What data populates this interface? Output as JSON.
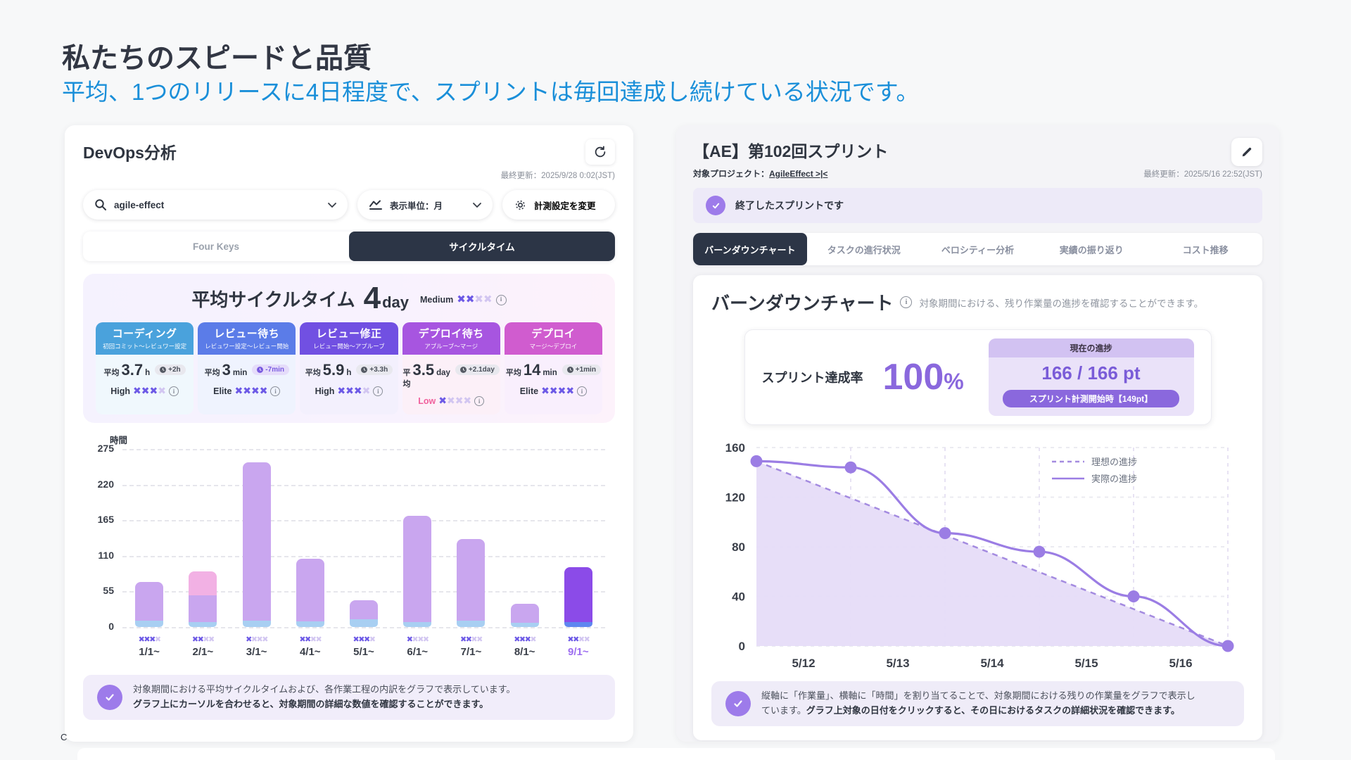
{
  "page": {
    "title": "私たちのスピードと品質",
    "subtitle": "平均、1つのリリースに4日程度で、スプリントは毎回達成し続けている状況です。",
    "corner_mark": "C",
    "colors": {
      "accent_purple": "#8a68dd",
      "subtitle_blue": "#1a8fd9",
      "dark_navy": "#2c3546",
      "line_purple": "#9b7de4"
    }
  },
  "devops_panel": {
    "title": "DevOps分析",
    "last_updated": "最終更新：2025/9/28 0:02(JST)",
    "search": {
      "value": "agile-effect"
    },
    "unit_select": {
      "label": "表示単位：月"
    },
    "settings_button": {
      "label": "計測設定を変更"
    },
    "tabs": [
      {
        "label": "Four Keys",
        "active": false
      },
      {
        "label": "サイクルタイム",
        "active": true
      }
    ],
    "cycle_card": {
      "title": "平均サイクルタイム",
      "value": "4",
      "unit": "day",
      "rating_label": "Medium",
      "rating_filled": 2,
      "rating_total": 4,
      "avg_prefix": "平均",
      "stages": [
        {
          "name": "コーディング",
          "range": "初回コミット～レビュワー設定",
          "color": "#4aa2dc",
          "bg": "#f0f8fd",
          "value": "3.7",
          "unit": "h",
          "delta": "+2h",
          "delta_style": "gray",
          "rating": "High",
          "stars": 3
        },
        {
          "name": "レビュー待ち",
          "range": "レビュワー設定～レビュー開始",
          "color": "#5b7ce8",
          "bg": "#eff3fe",
          "value": "3",
          "unit": "min",
          "delta": "-7min",
          "delta_style": "purple",
          "rating": "Elite",
          "stars": 4
        },
        {
          "name": "レビュー修正",
          "range": "レビュー開始～アプルーブ",
          "color": "#7150e2",
          "bg": "#f3f0fd",
          "value": "5.9",
          "unit": "h",
          "delta": "+3.3h",
          "delta_style": "gray",
          "rating": "High",
          "stars": 3
        },
        {
          "name": "デプロイ待ち",
          "range": "アプルーブ～マージ",
          "color": "#a755e0",
          "bg": "#fcf0f8",
          "value": "3.5",
          "unit": "day",
          "delta": "+2.1day",
          "delta_style": "gray",
          "rating": "Low",
          "rating_low": true,
          "stars": 1
        },
        {
          "name": "デプロイ",
          "range": "マージ～デプロイ",
          "color": "#d05ccf",
          "bg": "#f9effd",
          "value": "14",
          "unit": "min",
          "delta": "+1min",
          "delta_style": "gray",
          "rating": "Elite",
          "stars": 4
        }
      ]
    },
    "note_line1": "対象期間における平均サイクルタイムおよび、各作業工程の内訳をグラフで表示しています。",
    "note_line2": "グラフ上にカーソルを合わせると、対象期間の詳細な数値を確認することができます。"
  },
  "sprint_panel": {
    "title": "【AE】第102回スプリント",
    "project_label": "対象プロジェクト：",
    "project_link": "AgileEffect >|<",
    "last_updated": "最終更新：2025/5/16 22:52(JST)",
    "status_banner": "終了したスプリントです",
    "tabs": [
      {
        "label": "バーンダウンチャート",
        "active": true
      },
      {
        "label": "タスクの進行状況",
        "active": false
      },
      {
        "label": "ベロシティー分析",
        "active": false
      },
      {
        "label": "実績の振り返り",
        "active": false
      },
      {
        "label": "コスト推移",
        "active": false
      }
    ],
    "section_title": "バーンダウンチャート",
    "section_desc": "対象期間における、残り作業量の進捗を確認することができます。",
    "achievement": {
      "label": "スプリント達成率",
      "value": "100",
      "unit": "%",
      "progress_header": "現在の進捗",
      "progress_value": "166 / 166 pt",
      "start_badge": "スプリント計測開始時【149pt】"
    },
    "note_line1": "縦軸に「作業量」、横軸に「時間」を割り当てることで、対象期間における残りの作業量をグラフで表示し",
    "note_line2_normal": "ています。",
    "note_line2_bold": "グラフ上対象の日付をクリックすると、その日におけるタスクの詳細状況を確認できます。"
  },
  "chart_data": [
    {
      "id": "cycle_time_stacked_bars",
      "type": "bar",
      "title": "時間",
      "ylabel": "時間",
      "categories": [
        "1/1~",
        "2/1~",
        "3/1~",
        "4/1~",
        "5/1~",
        "6/1~",
        "7/1~",
        "8/1~",
        "9/1~"
      ],
      "yticks": [
        275,
        220,
        165,
        110,
        55,
        0
      ],
      "ylim": [
        0,
        290
      ],
      "grid": true,
      "series": [
        {
          "name": "blue_bottom",
          "values": [
            10,
            8,
            10,
            9,
            12,
            8,
            10,
            7,
            8
          ]
        },
        {
          "name": "purple_main",
          "values": [
            60,
            41,
            244,
            97,
            29,
            164,
            126,
            29,
            84
          ]
        },
        {
          "name": "pink_top",
          "values": [
            0,
            37,
            0,
            0,
            0,
            0,
            0,
            0,
            0
          ]
        }
      ],
      "totals": [
        70,
        86,
        254,
        106,
        41,
        172,
        136,
        36,
        92
      ],
      "bar_ratings": [
        3,
        2,
        1,
        2,
        3,
        1,
        2,
        3,
        2
      ],
      "highlight_index": 8,
      "colors": {
        "purple": "#c9a6ef",
        "pink": "#f2b1e4",
        "blue": "#a8cff2",
        "highlight_purple": "#8b4be8",
        "highlight_blue": "#5f86f0"
      }
    },
    {
      "id": "burndown",
      "type": "line",
      "x_labels": [
        "5/12",
        "5/13",
        "5/14",
        "5/15",
        "5/16"
      ],
      "yticks": [
        160,
        120,
        80,
        40,
        0
      ],
      "ylim": [
        0,
        160
      ],
      "grid": true,
      "legend_position": "top-right",
      "series": [
        {
          "name": "理想の進捗",
          "style": "dashed",
          "values": [
            149,
            119.2,
            89.4,
            59.6,
            29.8,
            0
          ]
        },
        {
          "name": "実際の進捗",
          "style": "solid",
          "values": [
            149,
            144,
            91,
            76,
            40,
            0
          ]
        }
      ]
    }
  ]
}
